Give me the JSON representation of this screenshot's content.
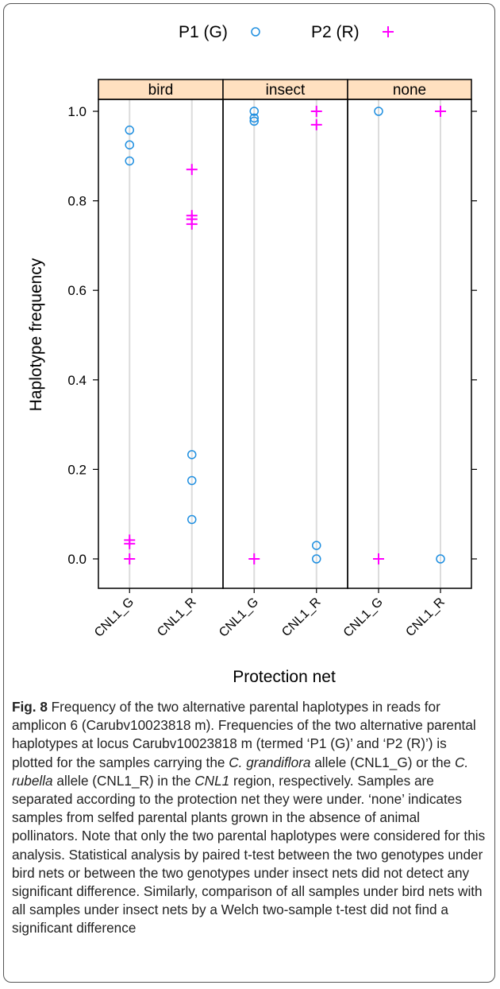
{
  "chart_data": {
    "type": "scatter",
    "legend_position": "top",
    "series": [
      {
        "name": "P1 (G)",
        "marker": "circle",
        "color": "#1f8fe0"
      },
      {
        "name": "P2 (R)",
        "marker": "plus",
        "color": "#ff00ff"
      }
    ],
    "panels": [
      {
        "label": "bird",
        "points": [
          {
            "x": "CNL1_G",
            "series": "P1 (G)",
            "y": 0.958
          },
          {
            "x": "CNL1_G",
            "series": "P1 (G)",
            "y": 0.925
          },
          {
            "x": "CNL1_G",
            "series": "P1 (G)",
            "y": 0.889
          },
          {
            "x": "CNL1_G",
            "series": "P2 (R)",
            "y": 0.042
          },
          {
            "x": "CNL1_G",
            "series": "P2 (R)",
            "y": 0.034
          },
          {
            "x": "CNL1_G",
            "series": "P2 (R)",
            "y": 0.0
          },
          {
            "x": "CNL1_R",
            "series": "P1 (G)",
            "y": 0.233
          },
          {
            "x": "CNL1_R",
            "series": "P1 (G)",
            "y": 0.175
          },
          {
            "x": "CNL1_R",
            "series": "P1 (G)",
            "y": 0.088
          },
          {
            "x": "CNL1_R",
            "series": "P2 (R)",
            "y": 0.87
          },
          {
            "x": "CNL1_R",
            "series": "P2 (R)",
            "y": 0.767
          },
          {
            "x": "CNL1_R",
            "series": "P2 (R)",
            "y": 0.759
          },
          {
            "x": "CNL1_R",
            "series": "P2 (R)",
            "y": 0.748
          }
        ]
      },
      {
        "label": "insect",
        "points": [
          {
            "x": "CNL1_G",
            "series": "P1 (G)",
            "y": 1.0
          },
          {
            "x": "CNL1_G",
            "series": "P1 (G)",
            "y": 0.985
          },
          {
            "x": "CNL1_G",
            "series": "P1 (G)",
            "y": 0.978
          },
          {
            "x": "CNL1_G",
            "series": "P2 (R)",
            "y": 0.0
          },
          {
            "x": "CNL1_R",
            "series": "P2 (R)",
            "y": 1.0
          },
          {
            "x": "CNL1_R",
            "series": "P2 (R)",
            "y": 0.97
          },
          {
            "x": "CNL1_R",
            "series": "P1 (G)",
            "y": 0.03
          },
          {
            "x": "CNL1_R",
            "series": "P1 (G)",
            "y": 0.0
          }
        ]
      },
      {
        "label": "none",
        "points": [
          {
            "x": "CNL1_G",
            "series": "P1 (G)",
            "y": 1.0
          },
          {
            "x": "CNL1_G",
            "series": "P2 (R)",
            "y": 0.0
          },
          {
            "x": "CNL1_R",
            "series": "P2 (R)",
            "y": 1.0
          },
          {
            "x": "CNL1_R",
            "series": "P1 (G)",
            "y": 0.0
          }
        ]
      }
    ],
    "categories": [
      "CNL1_G",
      "CNL1_R"
    ],
    "xlabel": "Protection net",
    "ylabel": "Haplotype frequency",
    "ylim": [
      -0.07,
      1.07
    ],
    "yticks": [
      "0.0",
      "0.2",
      "0.4",
      "0.6",
      "0.8",
      "1.0"
    ],
    "colors": {
      "strip_bg": "#ffe0c0",
      "gridline": "#dcdcdc",
      "axis": "#000000"
    }
  },
  "caption": {
    "fig_label": "Fig. 8",
    "parts": [
      "  Frequency of the two alternative parental haplotypes in reads for amplicon 6 (Carubv10023818 m). Frequencies of the two alternative parental haplotypes at locus Carubv10023818 m (termed ‘P1 (G)’ and ‘P2 (R)’) is plotted for the samples carrying the ",
      "C. grandiflora",
      " allele (CNL1_G) or the ",
      "C. rubella",
      " allele (CNL1_R) in the ",
      "CNL1",
      " region, respectively. Samples are separated according to the protection net they were under. ‘none’ indicates samples from selfed parental plants grown in the absence of animal pollinators. Note that only the two parental haplotypes were considered for this analysis. Statistical analysis by paired t-test between the two genotypes under bird nets or between the two genotypes under insect nets did not detect any significant difference. Similarly, comparison of all samples under bird nets with all samples under insect nets by a Welch two-sample t-test did not find a significant difference"
    ]
  }
}
